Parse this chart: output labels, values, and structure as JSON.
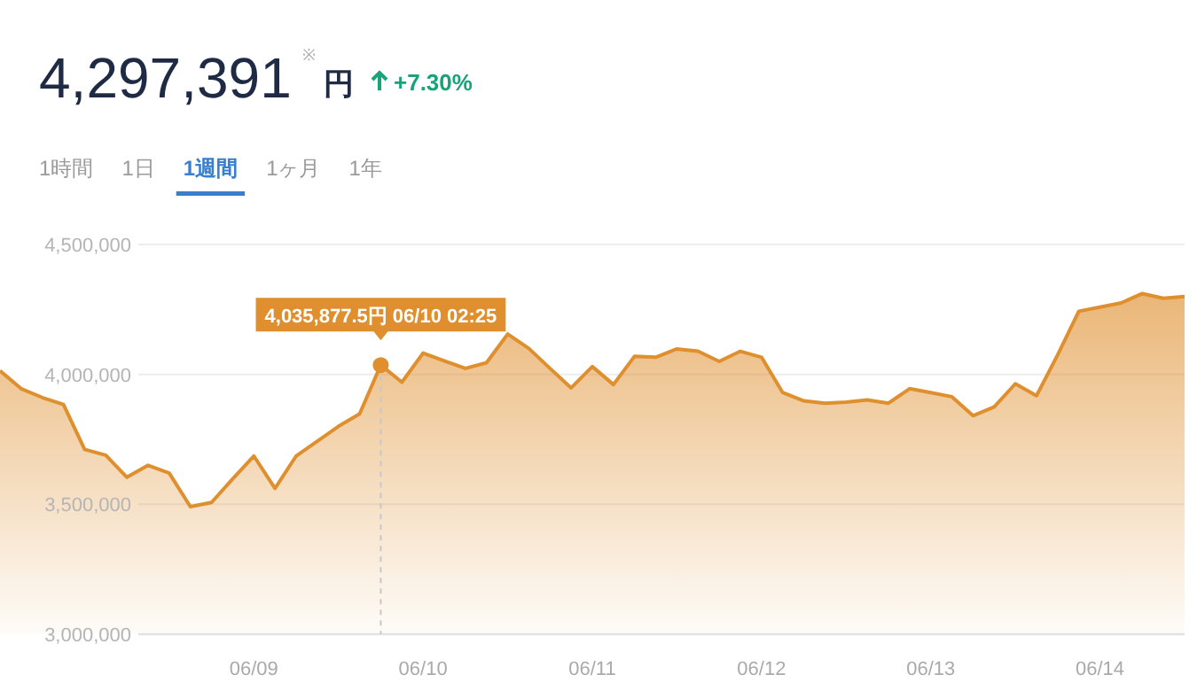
{
  "chart_data": {
    "type": "area",
    "title": "4,297,391",
    "annotations": [
      "※",
      "円",
      "+7.30%",
      "1時間",
      "1日",
      "1週間",
      "1ヶ月",
      "1年",
      {
        "text": "4,035,877.5円 06/10 02:25",
        "y": 4035877.5
      }
    ],
    "categories": [
      null,
      null,
      null,
      null,
      null,
      null,
      null,
      null,
      null,
      null,
      null,
      null,
      "06/09",
      null,
      null,
      null,
      null,
      null,
      null,
      null,
      "06/10",
      null,
      null,
      null,
      null,
      null,
      null,
      null,
      "06/11",
      null,
      null,
      null,
      null,
      null,
      null,
      null,
      "06/12",
      null,
      null,
      null,
      null,
      null,
      null,
      null,
      "06/13",
      null,
      null,
      null,
      null,
      null,
      null,
      null,
      "06/14",
      null,
      null,
      null,
      null
    ],
    "values": [
      4014000,
      3945000,
      3911000,
      3884000,
      3711000,
      3689000,
      3604000,
      3650000,
      3620000,
      3491000,
      3507000,
      3598000,
      3686000,
      3561000,
      3686000,
      3743000,
      3800000,
      3848000,
      4035877.5,
      3970000,
      4082000,
      4052000,
      4023000,
      4045000,
      4155000,
      4100000,
      4023000,
      3948000,
      4030000,
      3961000,
      4070000,
      4066000,
      4098000,
      4089000,
      4050000,
      4089000,
      4066000,
      3930000,
      3898000,
      3889000,
      3893000,
      3902000,
      3889000,
      3945000,
      3930000,
      3914000,
      3841000,
      3875000,
      3964000,
      3918000,
      4075000,
      4243000,
      4259000,
      4275000,
      4311000,
      4293000,
      4300000
    ],
    "color": "#df8f2e",
    "ylim": [
      3000000,
      4500000
    ],
    "yticks": [
      {
        "value": 3000000,
        "label": "3,000,000"
      },
      {
        "value": 3500000,
        "label": "3,500,000"
      },
      {
        "value": 4000000,
        "label": "4,000,000"
      },
      {
        "value": 4500000,
        "label": "4,500,000"
      }
    ],
    "grid": "y",
    "marker": "none",
    "line_style": "solid"
  }
}
